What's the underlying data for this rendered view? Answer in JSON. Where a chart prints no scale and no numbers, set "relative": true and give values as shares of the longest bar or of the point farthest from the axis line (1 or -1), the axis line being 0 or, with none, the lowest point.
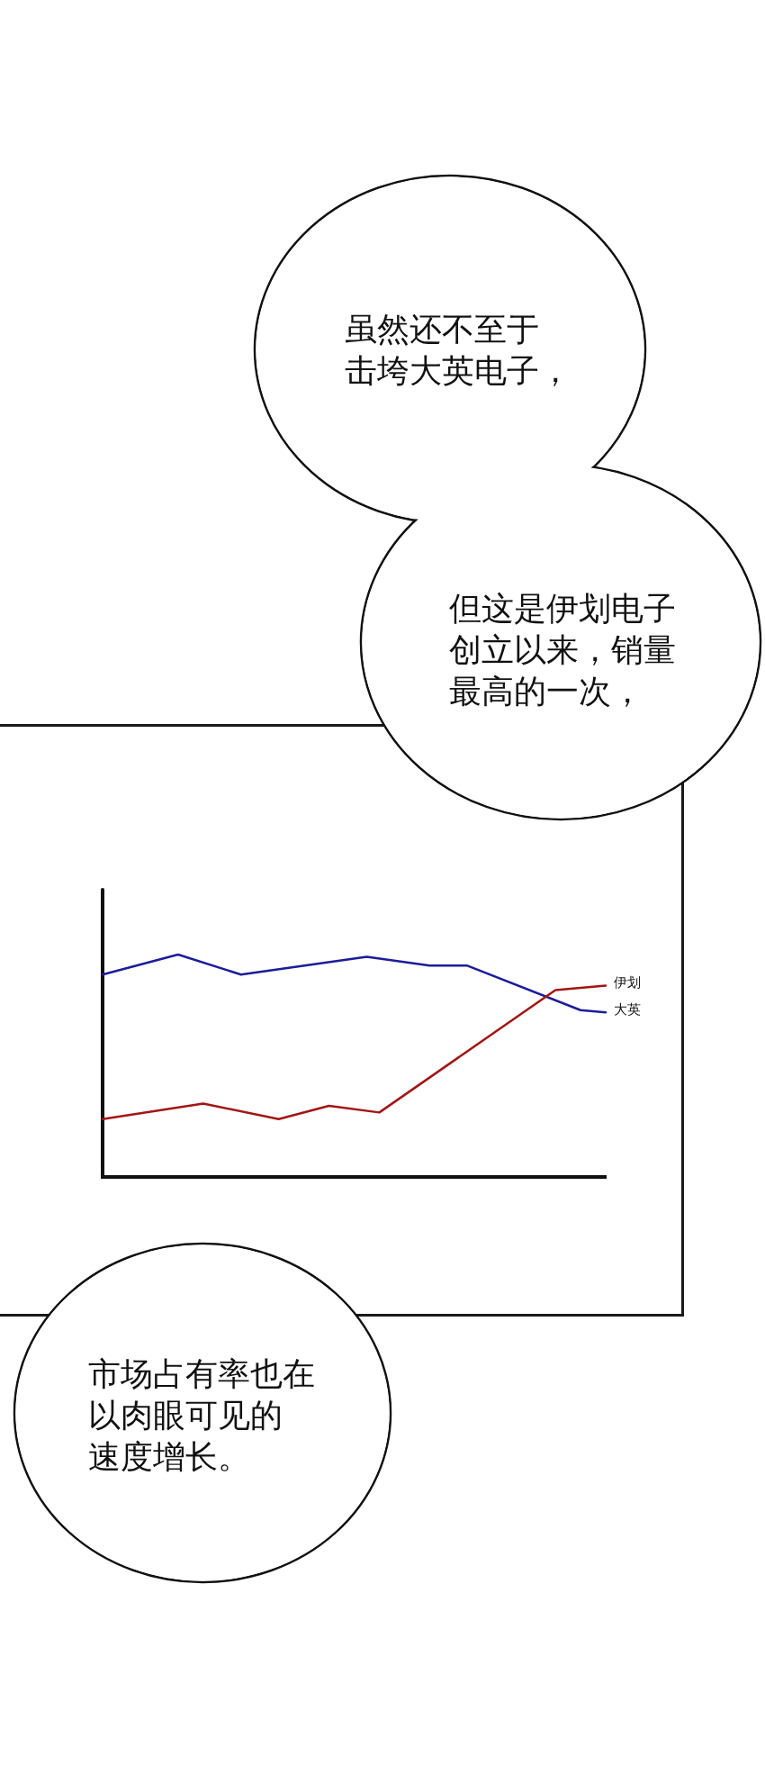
{
  "chart_data": {
    "type": "line",
    "relative": true,
    "categories": [
      null,
      null,
      null,
      null,
      null,
      null,
      null,
      null,
      null,
      null,
      null,
      null,
      null,
      null,
      null,
      null,
      null,
      null,
      null,
      null,
      null,
      null,
      null,
      null,
      null,
      null,
      null,
      null,
      null,
      null,
      null,
      null,
      null,
      null,
      null,
      null,
      null,
      null,
      null,
      null,
      null
    ],
    "series": [
      {
        "name": "伊划",
        "color": "#a31515",
        "values": [
          0.26,
          null,
          null,
          null,
          null,
          null,
          null,
          null,
          0.33,
          null,
          null,
          null,
          null,
          null,
          0.26,
          null,
          null,
          null,
          0.32,
          null,
          null,
          null,
          0.29,
          null,
          null,
          null,
          null,
          null,
          null,
          null,
          null,
          null,
          null,
          null,
          null,
          null,
          0.84,
          null,
          null,
          null,
          0.86
        ]
      },
      {
        "name": "大英",
        "color": "#1c1c9c",
        "values": [
          0.91,
          null,
          null,
          null,
          null,
          null,
          1,
          null,
          null,
          null,
          null,
          0.91,
          null,
          null,
          null,
          null,
          null,
          null,
          null,
          null,
          null,
          0.99,
          null,
          null,
          null,
          null,
          0.95,
          null,
          null,
          0.95,
          null,
          null,
          null,
          null,
          null,
          null,
          null,
          null,
          0.75,
          null,
          0.74
        ]
      }
    ],
    "annotations": [
      "虽然还不至于击垮大英电子，",
      "但这是伊划电子创立以来，销量最高的一次，",
      "市场占有率也在以肉眼可见的速度增长。"
    ],
    "grid": false,
    "marker": "none"
  }
}
